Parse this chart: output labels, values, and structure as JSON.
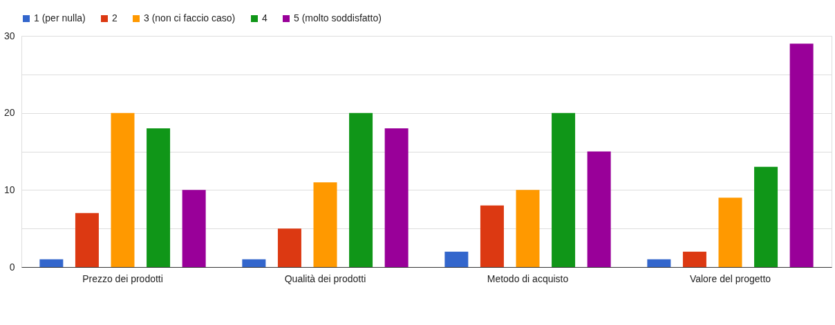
{
  "chart_data": {
    "type": "bar",
    "categories": [
      "Prezzo dei prodotti",
      "Qualità dei prodotti",
      "Metodo di acquisto",
      "Valore del progetto"
    ],
    "series": [
      {
        "name": "1 (per nulla)",
        "color": "#3366cc",
        "values": [
          1,
          1,
          2,
          1
        ]
      },
      {
        "name": "2",
        "color": "#dc3912",
        "values": [
          7,
          5,
          8,
          2
        ]
      },
      {
        "name": "3 (non ci faccio caso)",
        "color": "#ff9900",
        "values": [
          20,
          11,
          10,
          9
        ]
      },
      {
        "name": "4",
        "color": "#109618",
        "values": [
          18,
          20,
          20,
          13
        ]
      },
      {
        "name": "5 (molto soddisfatto)",
        "color": "#990099",
        "values": [
          10,
          18,
          15,
          29
        ]
      }
    ],
    "ylim": [
      0,
      30
    ],
    "yticks": [
      0,
      {
        "value": 5,
        "label": null
      },
      10,
      {
        "value": 15,
        "label": null
      },
      20,
      {
        "value": 25,
        "label": null
      },
      30
    ],
    "grid": "y",
    "legend": "top left"
  }
}
